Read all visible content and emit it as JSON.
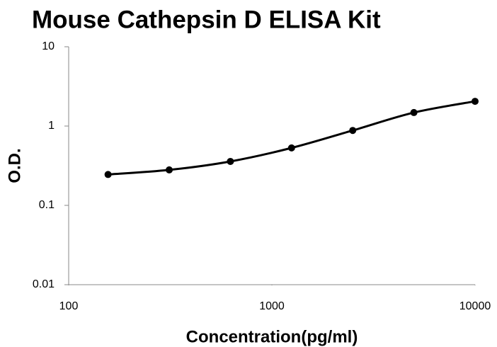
{
  "chart_data": {
    "type": "scatter",
    "title": "Mouse Cathepsin D ELISA Kit",
    "x_label": "Concentration(pg/ml)",
    "y_label": "O.D.",
    "x": [
      156.25,
      312.5,
      625,
      1250,
      2500,
      5000,
      10000
    ],
    "series": [
      {
        "name": "O.D.",
        "color": "#000000",
        "values": [
          0.245,
          0.28,
          0.358,
          0.53,
          0.88,
          1.48,
          2.05
        ]
      }
    ],
    "xlim": [
      100,
      10000
    ],
    "xticks": [
      100,
      1000,
      10000
    ],
    "ylim": [
      0.01,
      10
    ],
    "yticks": [
      0.01,
      0.1,
      1,
      10
    ],
    "log_x": true,
    "log_y": true,
    "grid": false
  }
}
